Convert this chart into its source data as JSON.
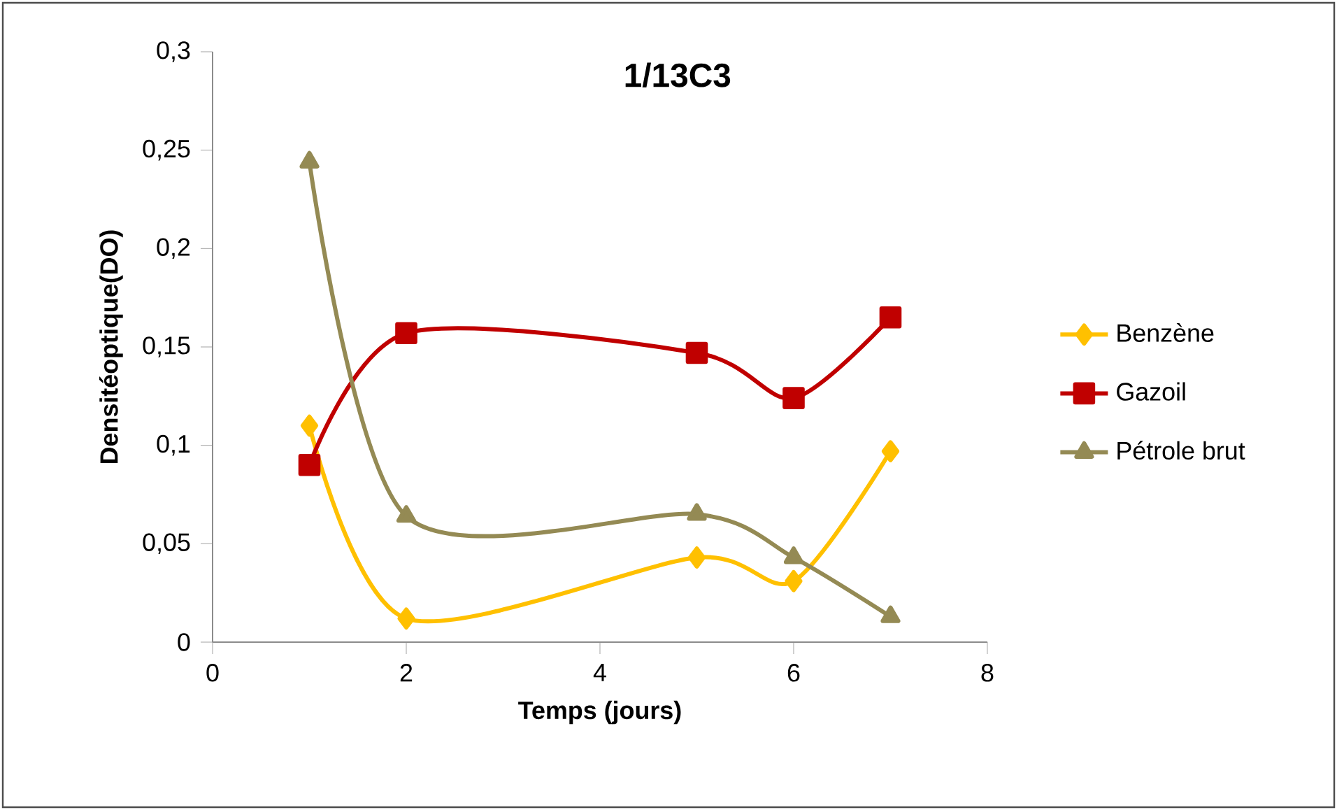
{
  "chart_data": {
    "type": "line",
    "title": "1/13C3",
    "xlabel": "Temps (jours)",
    "ylabel": "Densitéoptique(DO)",
    "x": [
      1,
      2,
      5,
      6,
      7
    ],
    "series": [
      {
        "name": "Benzène",
        "color": "#ffc000",
        "marker": "diamond",
        "values": [
          0.11,
          0.012,
          0.043,
          0.031,
          0.097
        ]
      },
      {
        "name": "Gazoil",
        "color": "#c00000",
        "marker": "square",
        "values": [
          0.09,
          0.157,
          0.147,
          0.124,
          0.165
        ]
      },
      {
        "name": "Pétrole brut",
        "color": "#948a54",
        "marker": "triangle",
        "values": [
          0.244,
          0.064,
          0.065,
          0.043,
          0.013
        ]
      }
    ],
    "xlim": [
      0,
      8
    ],
    "xticks": [
      0,
      2,
      4,
      6,
      8
    ],
    "ylim": [
      0,
      0.3
    ],
    "yticks": [
      {
        "value": 0,
        "label": "0"
      },
      {
        "value": 0.05,
        "label": "0,05"
      },
      {
        "value": 0.1,
        "label": "0,1"
      },
      {
        "value": 0.15,
        "label": "0,15"
      },
      {
        "value": 0.2,
        "label": "0,2"
      },
      {
        "value": 0.25,
        "label": "0,25"
      },
      {
        "value": 0.3,
        "label": "0,3"
      }
    ],
    "grid": false,
    "legend": "right",
    "line_style": "solid"
  }
}
